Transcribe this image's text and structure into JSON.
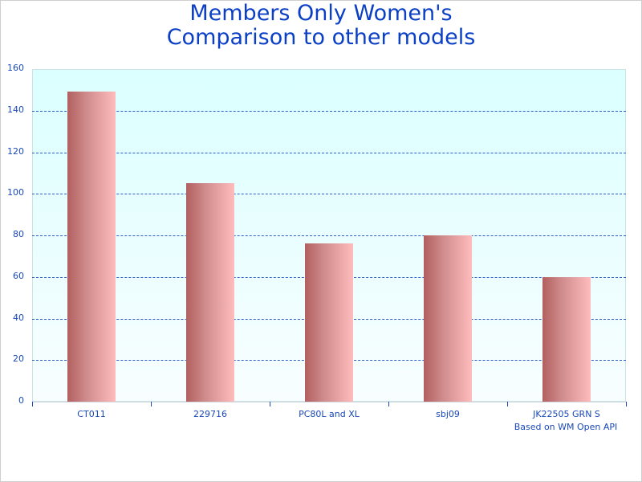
{
  "chart_data": {
    "type": "bar",
    "title": "Members Only Women's\nComparison to other models",
    "title_lines": [
      "Members Only Women's",
      "Comparison to other models"
    ],
    "categories": [
      "CT011",
      "229716",
      "PC80L and XL",
      "sbj09",
      "JK22505 GRN S"
    ],
    "values": [
      149,
      105,
      76,
      80,
      60
    ],
    "xlabel": "",
    "ylabel": "",
    "ylim": [
      0,
      160
    ],
    "yticks": [
      0,
      20,
      40,
      60,
      80,
      100,
      120,
      140,
      160
    ],
    "grid": true,
    "legend": null,
    "annotation": "Based on WM Open API",
    "colors": {
      "bar_dark": "#b25f5f",
      "bar_light": "#ffbcbc",
      "text": "#1a48b8",
      "title": "#0a3fc6",
      "plot_bg_top": "#dbffff"
    }
  }
}
